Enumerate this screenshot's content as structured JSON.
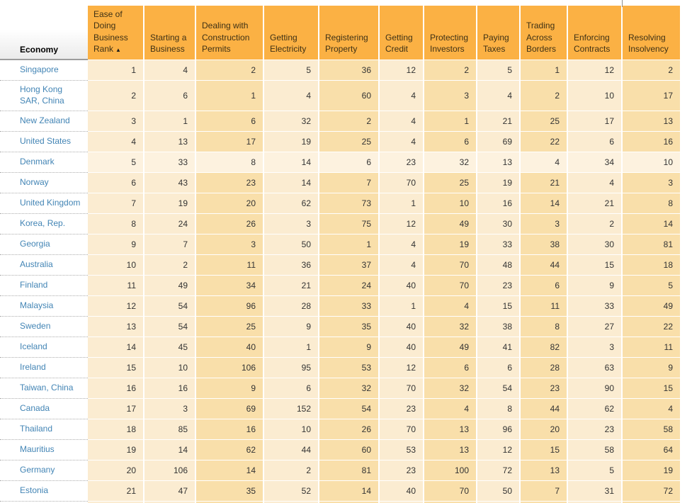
{
  "colors": {
    "header_bg": "#FBB144",
    "cell_light": "#FBECD1",
    "cell_dark": "#F9DFAA",
    "row_highlight": "#FDF2DF",
    "link_color": "#4385B5",
    "header_text": "#3E3115",
    "cell_text": "#333333"
  },
  "table": {
    "economy_header": "Economy",
    "columns": [
      {
        "label": "Ease of Doing Business Rank",
        "shade": "light",
        "sorted": true,
        "sort_indicator": "▲"
      },
      {
        "label": "Starting a Business",
        "shade": "light"
      },
      {
        "label": "Dealing with Construction Permits",
        "shade": "dark"
      },
      {
        "label": "Getting Electricity",
        "shade": "light"
      },
      {
        "label": "Registering Property",
        "shade": "dark"
      },
      {
        "label": "Getting Credit",
        "shade": "light"
      },
      {
        "label": "Protecting Investors",
        "shade": "dark"
      },
      {
        "label": "Paying Taxes",
        "shade": "light"
      },
      {
        "label": "Trading Across Borders",
        "shade": "dark"
      },
      {
        "label": "Enforcing Contracts",
        "shade": "light"
      },
      {
        "label": "Resolving Insolvency",
        "shade": "dark"
      }
    ],
    "rows": [
      {
        "economy": "Singapore",
        "highlighted": false,
        "values": [
          1,
          4,
          2,
          5,
          36,
          12,
          2,
          5,
          1,
          12,
          2
        ]
      },
      {
        "economy": "Hong Kong SAR, China",
        "highlighted": false,
        "values": [
          2,
          6,
          1,
          4,
          60,
          4,
          3,
          4,
          2,
          10,
          17
        ]
      },
      {
        "economy": "New Zealand",
        "highlighted": false,
        "values": [
          3,
          1,
          6,
          32,
          2,
          4,
          1,
          21,
          25,
          17,
          13
        ]
      },
      {
        "economy": "United States",
        "highlighted": false,
        "values": [
          4,
          13,
          17,
          19,
          25,
          4,
          6,
          69,
          22,
          6,
          16
        ]
      },
      {
        "economy": "Denmark",
        "highlighted": true,
        "values": [
          5,
          33,
          8,
          14,
          6,
          23,
          32,
          13,
          4,
          34,
          10
        ]
      },
      {
        "economy": "Norway",
        "highlighted": false,
        "values": [
          6,
          43,
          23,
          14,
          7,
          70,
          25,
          19,
          21,
          4,
          3
        ]
      },
      {
        "economy": "United Kingdom",
        "highlighted": false,
        "values": [
          7,
          19,
          20,
          62,
          73,
          1,
          10,
          16,
          14,
          21,
          8
        ]
      },
      {
        "economy": "Korea, Rep.",
        "highlighted": false,
        "values": [
          8,
          24,
          26,
          3,
          75,
          12,
          49,
          30,
          3,
          2,
          14
        ]
      },
      {
        "economy": "Georgia",
        "highlighted": false,
        "values": [
          9,
          7,
          3,
          50,
          1,
          4,
          19,
          33,
          38,
          30,
          81
        ]
      },
      {
        "economy": "Australia",
        "highlighted": false,
        "values": [
          10,
          2,
          11,
          36,
          37,
          4,
          70,
          48,
          44,
          15,
          18
        ]
      },
      {
        "economy": "Finland",
        "highlighted": false,
        "values": [
          11,
          49,
          34,
          21,
          24,
          40,
          70,
          23,
          6,
          9,
          5
        ]
      },
      {
        "economy": "Malaysia",
        "highlighted": false,
        "values": [
          12,
          54,
          96,
          28,
          33,
          1,
          4,
          15,
          11,
          33,
          49
        ]
      },
      {
        "economy": "Sweden",
        "highlighted": false,
        "values": [
          13,
          54,
          25,
          9,
          35,
          40,
          32,
          38,
          8,
          27,
          22
        ]
      },
      {
        "economy": "Iceland",
        "highlighted": false,
        "values": [
          14,
          45,
          40,
          1,
          9,
          40,
          49,
          41,
          82,
          3,
          11
        ]
      },
      {
        "economy": "Ireland",
        "highlighted": false,
        "values": [
          15,
          10,
          106,
          95,
          53,
          12,
          6,
          6,
          28,
          63,
          9
        ]
      },
      {
        "economy": "Taiwan, China",
        "highlighted": false,
        "values": [
          16,
          16,
          9,
          6,
          32,
          70,
          32,
          54,
          23,
          90,
          15
        ]
      },
      {
        "economy": "Canada",
        "highlighted": false,
        "values": [
          17,
          3,
          69,
          152,
          54,
          23,
          4,
          8,
          44,
          62,
          4
        ]
      },
      {
        "economy": "Thailand",
        "highlighted": false,
        "values": [
          18,
          85,
          16,
          10,
          26,
          70,
          13,
          96,
          20,
          23,
          58
        ]
      },
      {
        "economy": "Mauritius",
        "highlighted": false,
        "values": [
          19,
          14,
          62,
          44,
          60,
          53,
          13,
          12,
          15,
          58,
          64
        ]
      },
      {
        "economy": "Germany",
        "highlighted": false,
        "values": [
          20,
          106,
          14,
          2,
          81,
          23,
          100,
          72,
          13,
          5,
          19
        ]
      },
      {
        "economy": "Estonia",
        "highlighted": false,
        "values": [
          21,
          47,
          35,
          52,
          14,
          40,
          70,
          50,
          7,
          31,
          72
        ]
      }
    ]
  }
}
